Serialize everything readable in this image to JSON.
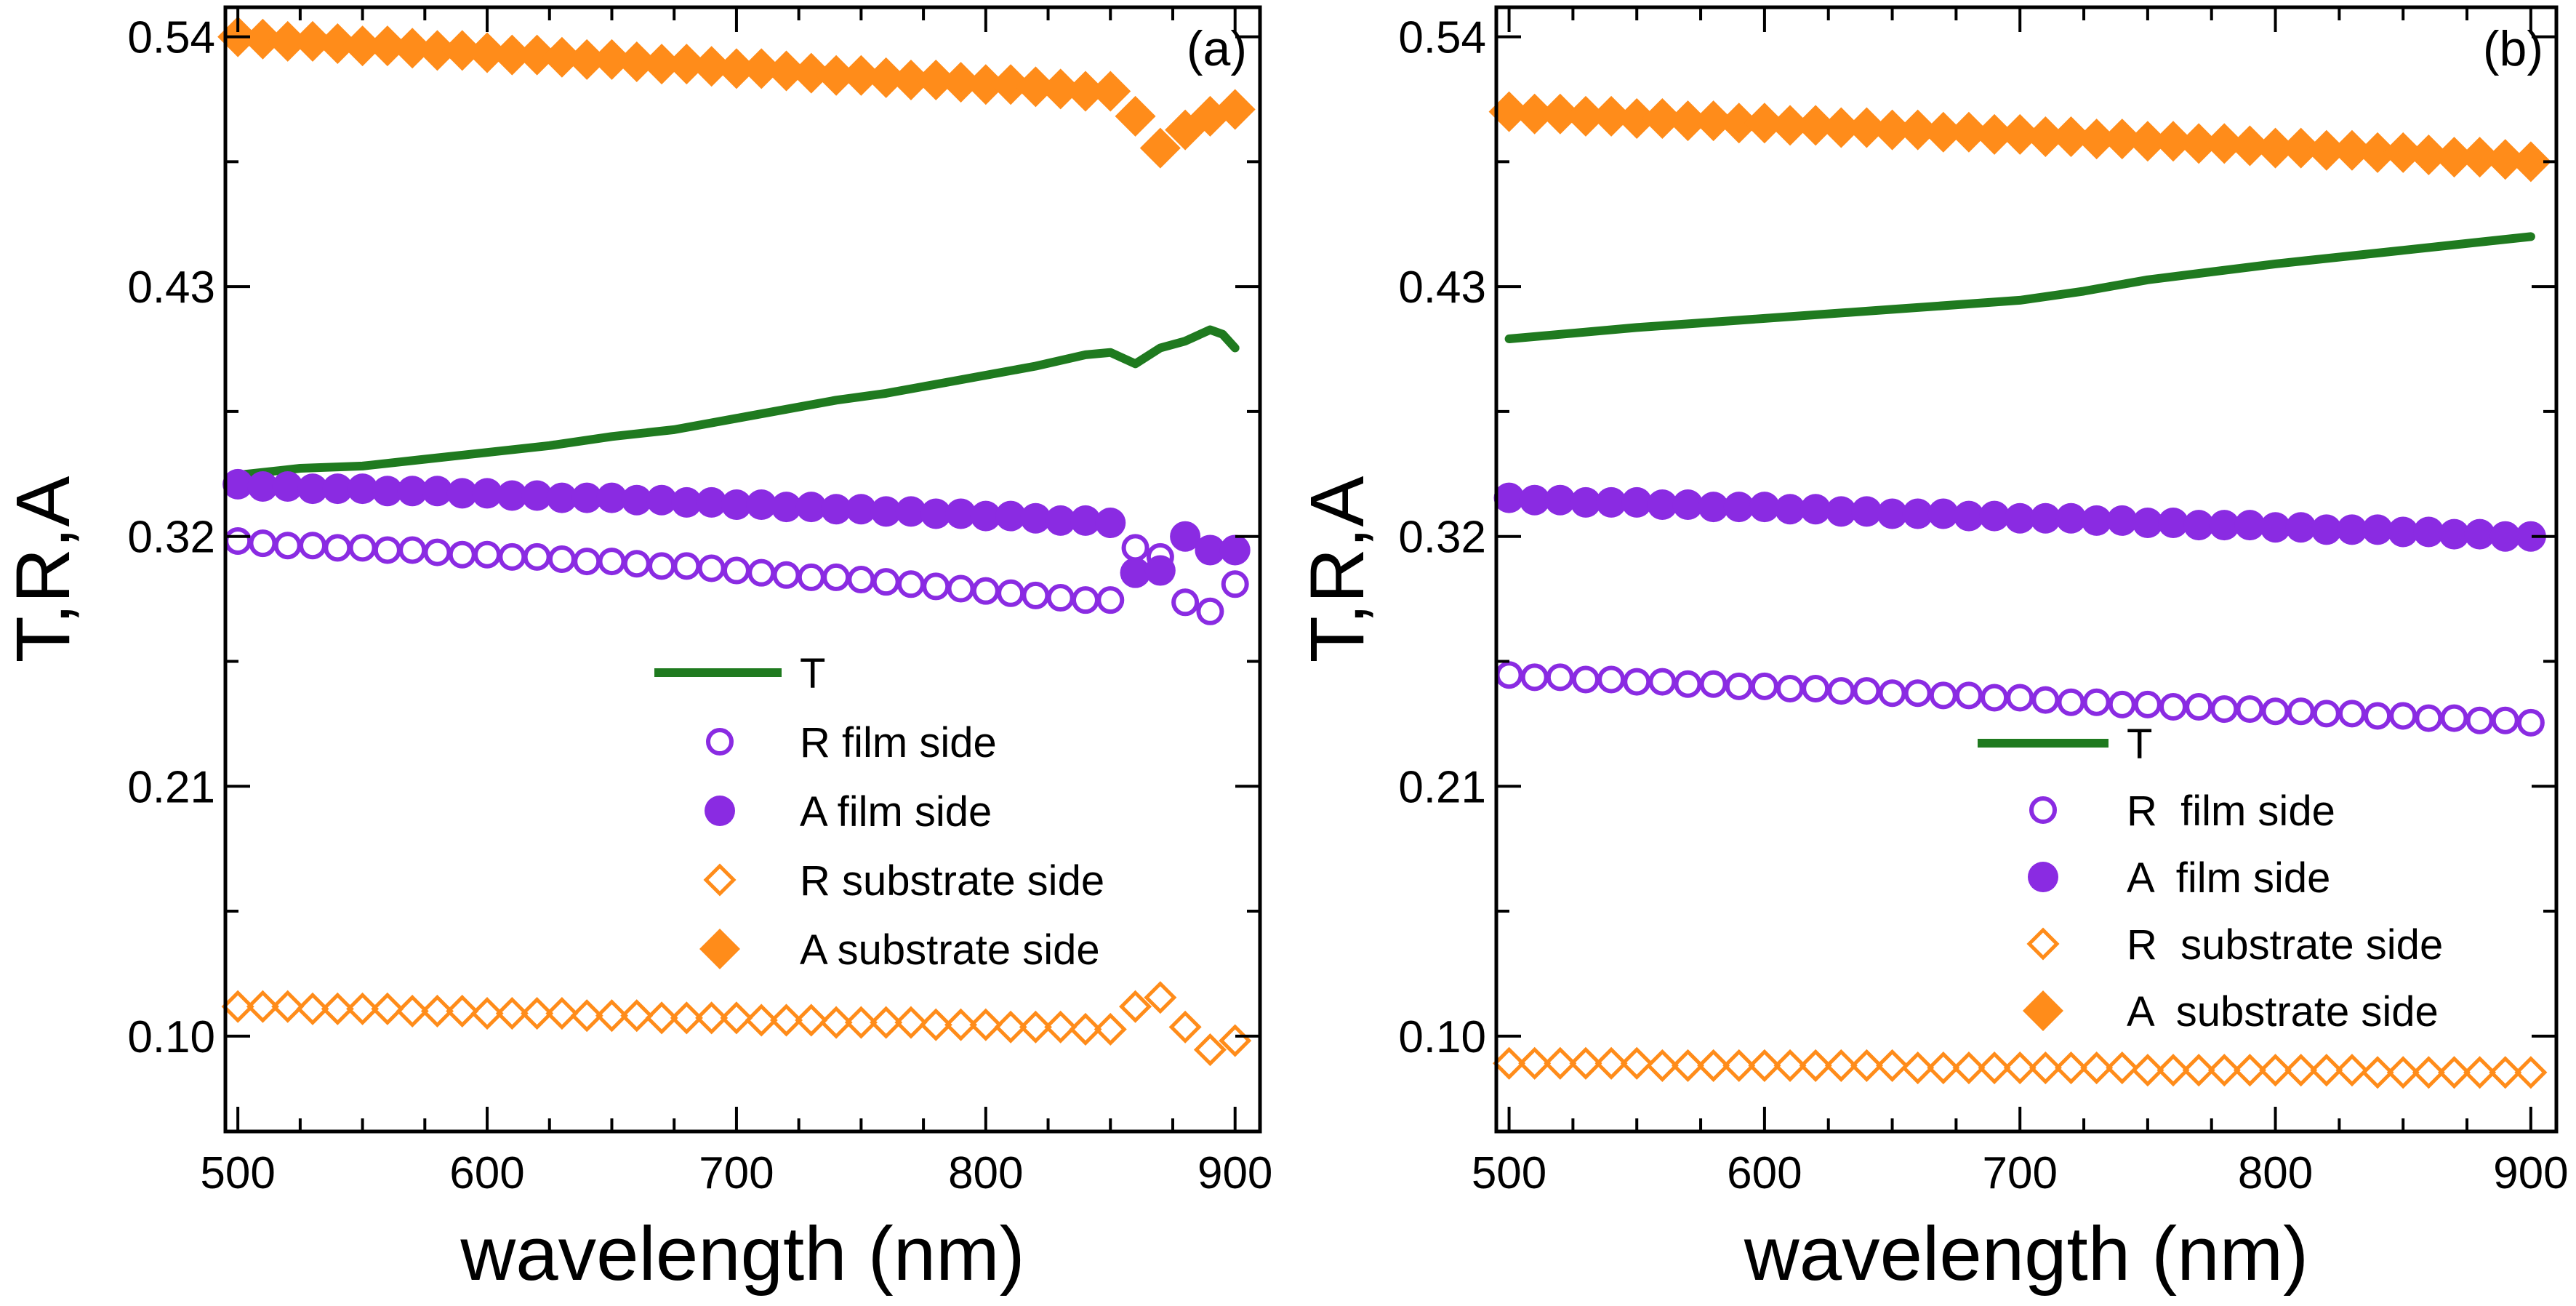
{
  "colors": {
    "T": "#1f7a1f",
    "R_film": "#8a2be2",
    "A_film": "#8a2be2",
    "R_sub": "#ff8c1a",
    "A_sub": "#ff8c1a"
  },
  "chart_data": [
    {
      "type": "line",
      "panel_label": "(a)",
      "xlabel": "wavelength (nm)",
      "ylabel": "T,R,A",
      "xlim": [
        495,
        910
      ],
      "ylim": [
        0.058,
        0.553
      ],
      "xticks": [
        500,
        600,
        700,
        800,
        900
      ],
      "xtick_labels": [
        "500",
        "600",
        "700",
        "800",
        "900"
      ],
      "yticks": [
        0.1,
        0.21,
        0.32,
        0.43,
        0.54
      ],
      "ytick_labels": [
        "0.10",
        "0.21",
        "0.32",
        "0.43",
        "0.54"
      ],
      "legend": {
        "placement": "center-right",
        "entries": [
          "T",
          "R film side",
          "A film side",
          "R substrate side",
          "A substrate side"
        ]
      },
      "series": [
        {
          "name": "T",
          "key": "T",
          "marker": "line",
          "x": [
            500,
            525,
            550,
            575,
            600,
            625,
            650,
            675,
            700,
            720,
            740,
            760,
            780,
            800,
            820,
            840,
            850,
            860,
            870,
            880,
            890,
            895,
            900
          ],
          "y": [
            0.347,
            0.35,
            0.351,
            0.354,
            0.357,
            0.36,
            0.364,
            0.367,
            0.372,
            0.376,
            0.38,
            0.383,
            0.387,
            0.391,
            0.395,
            0.4,
            0.401,
            0.396,
            0.403,
            0.406,
            0.411,
            0.409,
            0.403
          ]
        },
        {
          "name": "R film side",
          "key": "R_film",
          "marker": "open-circle",
          "x": [
            500,
            510,
            520,
            530,
            540,
            550,
            560,
            570,
            580,
            590,
            600,
            610,
            620,
            630,
            640,
            650,
            660,
            670,
            680,
            690,
            700,
            710,
            720,
            730,
            740,
            750,
            760,
            770,
            780,
            790,
            800,
            810,
            820,
            830,
            840,
            850,
            860,
            870,
            880,
            890,
            900
          ],
          "y": [
            0.318,
            0.317,
            0.316,
            0.316,
            0.315,
            0.315,
            0.314,
            0.314,
            0.313,
            0.312,
            0.312,
            0.311,
            0.311,
            0.31,
            0.309,
            0.309,
            0.308,
            0.307,
            0.307,
            0.306,
            0.305,
            0.304,
            0.303,
            0.302,
            0.302,
            0.301,
            0.3,
            0.299,
            0.298,
            0.297,
            0.296,
            0.295,
            0.294,
            0.293,
            0.292,
            0.292,
            0.315,
            0.311,
            0.291,
            0.287,
            0.299
          ]
        },
        {
          "name": "A film side",
          "key": "A_film",
          "marker": "filled-circle",
          "x": [
            500,
            510,
            520,
            530,
            540,
            550,
            560,
            570,
            580,
            590,
            600,
            610,
            620,
            630,
            640,
            650,
            660,
            670,
            680,
            690,
            700,
            710,
            720,
            730,
            740,
            750,
            760,
            770,
            780,
            790,
            800,
            810,
            820,
            830,
            840,
            850,
            860,
            870,
            880,
            890,
            900
          ],
          "y": [
            0.343,
            0.342,
            0.342,
            0.341,
            0.341,
            0.341,
            0.34,
            0.34,
            0.34,
            0.339,
            0.339,
            0.338,
            0.338,
            0.337,
            0.337,
            0.337,
            0.336,
            0.336,
            0.335,
            0.335,
            0.334,
            0.334,
            0.333,
            0.333,
            0.332,
            0.332,
            0.331,
            0.331,
            0.33,
            0.33,
            0.329,
            0.329,
            0.328,
            0.327,
            0.327,
            0.326,
            0.304,
            0.305,
            0.32,
            0.314,
            0.314
          ]
        },
        {
          "name": "R substrate side",
          "key": "R_sub",
          "marker": "open-diamond",
          "x": [
            500,
            510,
            520,
            530,
            540,
            550,
            560,
            570,
            580,
            590,
            600,
            610,
            620,
            630,
            640,
            650,
            660,
            670,
            680,
            690,
            700,
            710,
            720,
            730,
            740,
            750,
            760,
            770,
            780,
            790,
            800,
            810,
            820,
            830,
            840,
            850,
            860,
            870,
            880,
            890,
            900
          ],
          "y": [
            0.113,
            0.113,
            0.113,
            0.112,
            0.112,
            0.112,
            0.112,
            0.111,
            0.111,
            0.111,
            0.11,
            0.11,
            0.11,
            0.11,
            0.109,
            0.109,
            0.109,
            0.108,
            0.108,
            0.108,
            0.108,
            0.107,
            0.107,
            0.107,
            0.106,
            0.106,
            0.106,
            0.106,
            0.105,
            0.105,
            0.105,
            0.104,
            0.104,
            0.104,
            0.103,
            0.103,
            0.113,
            0.117,
            0.104,
            0.094,
            0.098
          ]
        },
        {
          "name": "A substrate side",
          "key": "A_sub",
          "marker": "filled-diamond",
          "x": [
            500,
            510,
            520,
            530,
            540,
            550,
            560,
            570,
            580,
            590,
            600,
            610,
            620,
            630,
            640,
            650,
            660,
            670,
            680,
            690,
            700,
            710,
            720,
            730,
            740,
            750,
            760,
            770,
            780,
            790,
            800,
            810,
            820,
            830,
            840,
            850,
            860,
            870,
            880,
            890,
            900
          ],
          "y": [
            0.54,
            0.539,
            0.538,
            0.538,
            0.537,
            0.536,
            0.536,
            0.535,
            0.534,
            0.534,
            0.533,
            0.532,
            0.532,
            0.531,
            0.53,
            0.53,
            0.529,
            0.528,
            0.528,
            0.527,
            0.526,
            0.526,
            0.525,
            0.524,
            0.523,
            0.523,
            0.522,
            0.521,
            0.521,
            0.52,
            0.519,
            0.519,
            0.518,
            0.517,
            0.516,
            0.516,
            0.505,
            0.491,
            0.499,
            0.505,
            0.508
          ]
        }
      ]
    },
    {
      "type": "line",
      "panel_label": "(b)",
      "xlabel": "wavelength (nm)",
      "ylabel": "T,R,A",
      "xlim": [
        495,
        910
      ],
      "ylim": [
        0.058,
        0.553
      ],
      "xticks": [
        500,
        600,
        700,
        800,
        900
      ],
      "xtick_labels": [
        "500",
        "600",
        "700",
        "800",
        "900"
      ],
      "yticks": [
        0.1,
        0.21,
        0.32,
        0.43,
        0.54
      ],
      "ytick_labels": [
        "0.10",
        "0.21",
        "0.32",
        "0.43",
        "0.54"
      ],
      "legend": {
        "placement": "center-right",
        "entries": [
          "T",
          "R  film side",
          "A  film side",
          "R  substrate side",
          "A  substrate side"
        ]
      },
      "series": [
        {
          "name": "T",
          "key": "T",
          "marker": "line",
          "x": [
            500,
            550,
            600,
            650,
            700,
            725,
            750,
            800,
            850,
            900
          ],
          "y": [
            0.407,
            0.412,
            0.416,
            0.42,
            0.424,
            0.428,
            0.433,
            0.44,
            0.446,
            0.452
          ]
        },
        {
          "name": "R  film side",
          "key": "R_film",
          "marker": "open-circle",
          "x": [
            500,
            510,
            520,
            530,
            540,
            550,
            560,
            570,
            580,
            590,
            600,
            610,
            620,
            630,
            640,
            650,
            660,
            670,
            680,
            690,
            700,
            710,
            720,
            730,
            740,
            750,
            760,
            770,
            780,
            790,
            800,
            810,
            820,
            830,
            840,
            850,
            860,
            870,
            880,
            890,
            900
          ],
          "y": [
            0.259,
            0.258,
            0.258,
            0.257,
            0.257,
            0.256,
            0.256,
            0.255,
            0.255,
            0.254,
            0.254,
            0.253,
            0.253,
            0.252,
            0.252,
            0.251,
            0.251,
            0.25,
            0.25,
            0.249,
            0.249,
            0.248,
            0.247,
            0.247,
            0.246,
            0.246,
            0.245,
            0.245,
            0.244,
            0.244,
            0.243,
            0.243,
            0.242,
            0.242,
            0.241,
            0.241,
            0.24,
            0.24,
            0.239,
            0.239,
            0.238
          ]
        },
        {
          "name": "A  film side",
          "key": "A_film",
          "marker": "filled-circle",
          "x": [
            500,
            510,
            520,
            530,
            540,
            550,
            560,
            570,
            580,
            590,
            600,
            610,
            620,
            630,
            640,
            650,
            660,
            670,
            680,
            690,
            700,
            710,
            720,
            730,
            740,
            750,
            760,
            770,
            780,
            790,
            800,
            810,
            820,
            830,
            840,
            850,
            860,
            870,
            880,
            890,
            900
          ],
          "y": [
            0.337,
            0.336,
            0.336,
            0.335,
            0.335,
            0.335,
            0.334,
            0.334,
            0.333,
            0.333,
            0.333,
            0.332,
            0.332,
            0.331,
            0.331,
            0.33,
            0.33,
            0.33,
            0.329,
            0.329,
            0.328,
            0.328,
            0.328,
            0.327,
            0.327,
            0.326,
            0.326,
            0.325,
            0.325,
            0.325,
            0.324,
            0.324,
            0.323,
            0.323,
            0.323,
            0.322,
            0.322,
            0.321,
            0.321,
            0.32,
            0.32
          ]
        },
        {
          "name": "R  substrate side",
          "key": "R_sub",
          "marker": "open-diamond",
          "x": [
            500,
            510,
            520,
            530,
            540,
            550,
            560,
            570,
            580,
            590,
            600,
            610,
            620,
            630,
            640,
            650,
            660,
            670,
            680,
            690,
            700,
            710,
            720,
            730,
            740,
            750,
            760,
            770,
            780,
            790,
            800,
            810,
            820,
            830,
            840,
            850,
            860,
            870,
            880,
            890,
            900
          ],
          "y": [
            0.088,
            0.088,
            0.088,
            0.088,
            0.088,
            0.088,
            0.087,
            0.087,
            0.087,
            0.087,
            0.087,
            0.087,
            0.087,
            0.087,
            0.087,
            0.087,
            0.086,
            0.086,
            0.086,
            0.086,
            0.086,
            0.086,
            0.086,
            0.086,
            0.086,
            0.085,
            0.085,
            0.085,
            0.085,
            0.085,
            0.085,
            0.085,
            0.085,
            0.085,
            0.084,
            0.084,
            0.084,
            0.084,
            0.084,
            0.084,
            0.084
          ]
        },
        {
          "name": "A  substrate side",
          "key": "A_sub",
          "marker": "filled-diamond",
          "x": [
            500,
            510,
            520,
            530,
            540,
            550,
            560,
            570,
            580,
            590,
            600,
            610,
            620,
            630,
            640,
            650,
            660,
            670,
            680,
            690,
            700,
            710,
            720,
            730,
            740,
            750,
            760,
            770,
            780,
            790,
            800,
            810,
            820,
            830,
            840,
            850,
            860,
            870,
            880,
            890,
            900
          ],
          "y": [
            0.507,
            0.506,
            0.506,
            0.505,
            0.505,
            0.504,
            0.504,
            0.503,
            0.503,
            0.502,
            0.502,
            0.501,
            0.501,
            0.5,
            0.5,
            0.499,
            0.499,
            0.498,
            0.498,
            0.497,
            0.497,
            0.496,
            0.496,
            0.495,
            0.495,
            0.494,
            0.494,
            0.493,
            0.493,
            0.492,
            0.491,
            0.491,
            0.49,
            0.49,
            0.489,
            0.489,
            0.488,
            0.487,
            0.487,
            0.486,
            0.485
          ]
        }
      ]
    }
  ]
}
